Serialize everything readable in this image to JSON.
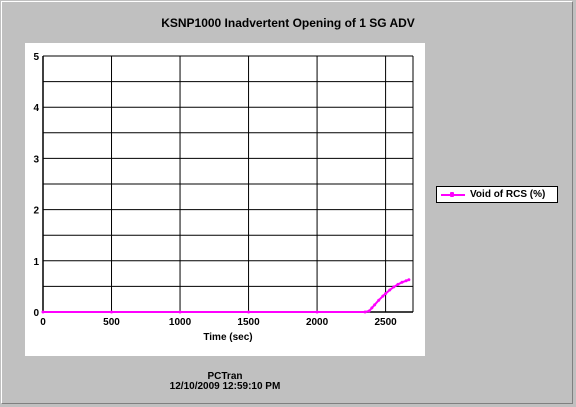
{
  "chart_data": {
    "type": "line",
    "title": "KSNP1000 Inadvertent Opening of 1 SG ADV",
    "xlabel": "Time (sec)",
    "ylabel": "",
    "xlim": [
      0,
      2700
    ],
    "ylim": [
      0,
      5
    ],
    "xticks": [
      0,
      500,
      1000,
      1500,
      2000,
      2500
    ],
    "yticks": [
      0,
      1,
      2,
      3,
      4,
      5
    ],
    "grid": true,
    "legend_position": "right",
    "series": [
      {
        "name": "Void of RCS (%)",
        "color": "#ff00ff",
        "x": [
          0,
          500,
          1000,
          1500,
          2000,
          2350,
          2380,
          2400,
          2420,
          2450,
          2480,
          2500,
          2530,
          2560,
          2590,
          2620,
          2650,
          2670
        ],
        "y": [
          0,
          0,
          0,
          0,
          0,
          0,
          0.02,
          0.08,
          0.14,
          0.23,
          0.31,
          0.36,
          0.43,
          0.49,
          0.54,
          0.58,
          0.61,
          0.63
        ]
      }
    ]
  },
  "footer": {
    "line1": "PCTran",
    "line2": "12/10/2009 12:59:10 PM"
  }
}
